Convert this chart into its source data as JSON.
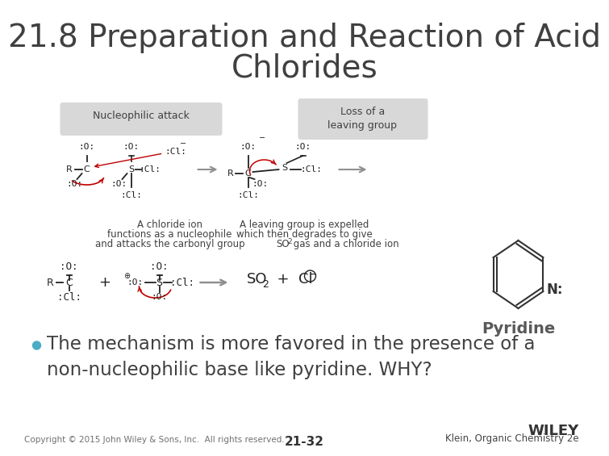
{
  "title_line1": "21.8 Preparation and Reaction of Acid",
  "title_line2": "Chlorides",
  "title_fontsize": 28,
  "title_color": "#404040",
  "background_color": "#ffffff",
  "bullet_dot_color": "#4bacc6",
  "bullet_fontsize": 16.5,
  "bullet_color": "#404040",
  "footer_left": "Copyright © 2015 John Wiley & Sons, Inc.  All rights reserved.",
  "footer_center": "21-32",
  "footer_right_line1": "WILEY",
  "footer_right_line2": "Klein, Organic Chemistry 2e",
  "footer_fontsize": 7.5,
  "wiley_fontsize": 12,
  "nucleophilic_attack_label": "Nucleophilic attack",
  "loss_leaving_label": "Loss of a\nleaving group",
  "label_box_color": "#d0d0d0",
  "chloride_caption1": "A chloride ion",
  "chloride_caption2": "functions as a nucleophile",
  "chloride_caption3": "and attacks the carbonyl group",
  "leaving_caption1": "A leaving group is expelled",
  "leaving_caption2": "which then degrades to give",
  "leaving_caption3": "SO₂ gas and a chloride ion",
  "pyridine_label": "Pyridine",
  "pyridine_label_color": "#595959",
  "caption_fontsize": 8.5,
  "arrow_color": "#909090",
  "red_arrow_color": "#c00000",
  "struct_color": "#222222",
  "struct_fontsize": 8.0
}
